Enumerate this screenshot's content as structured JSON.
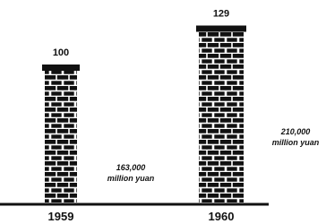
{
  "chart_data": {
    "type": "bar",
    "categories": [
      "1959",
      "1960"
    ],
    "values": [
      100,
      129
    ],
    "color": "#111111",
    "annotations": [
      [
        "163,000",
        "million yuan"
      ],
      [
        "210,000",
        "million yuan"
      ]
    ]
  }
}
